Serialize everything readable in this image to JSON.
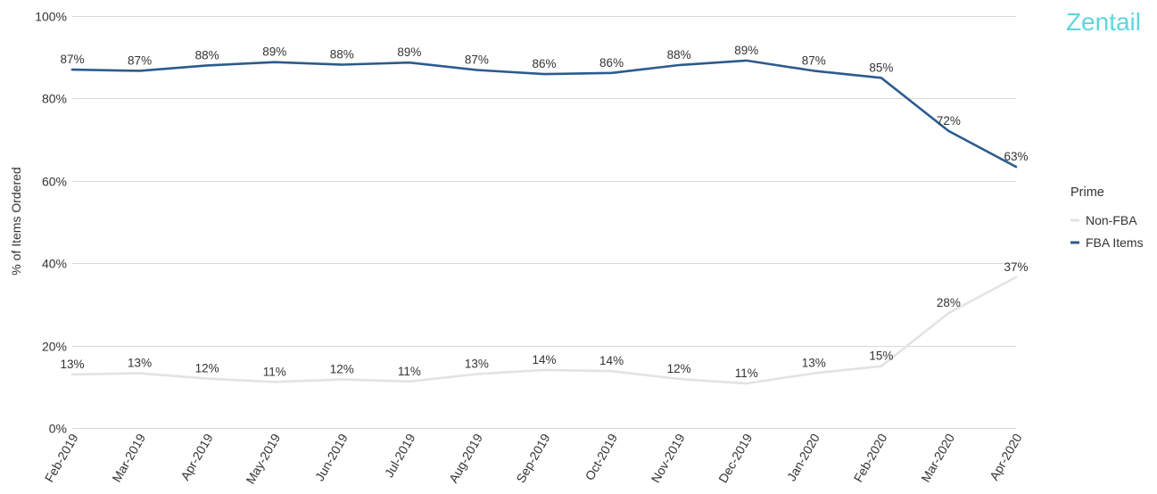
{
  "brand": {
    "name": "Zentail",
    "color": "#5fd6dd"
  },
  "chart_data": {
    "type": "line",
    "title": "",
    "xlabel": "",
    "ylabel": "% of Items Ordered",
    "ylim": [
      0,
      100
    ],
    "y_ticks": [
      0,
      20,
      40,
      60,
      80,
      100
    ],
    "y_tick_labels": [
      "0%",
      "20%",
      "40%",
      "60%",
      "80%",
      "100%"
    ],
    "grid": true,
    "legend_placement": "right",
    "legend_title": "Prime",
    "categories": [
      "Feb-2019",
      "Mar-2019",
      "Apr-2019",
      "May-2019",
      "Jun-2019",
      "Jul-2019",
      "Aug-2019",
      "Sep-2019",
      "Oct-2019",
      "Nov-2019",
      "Dec-2019",
      "Jan-2020",
      "Feb-2020",
      "Mar-2020",
      "Apr-2020"
    ],
    "series": [
      {
        "name": "Non-FBA",
        "color": "#e3e3e3",
        "values": [
          13,
          13.3,
          12,
          11.2,
          11.8,
          11.3,
          13.1,
          14.1,
          13.8,
          11.9,
          10.8,
          13.3,
          15,
          27.9,
          36.6
        ],
        "labels": [
          "13%",
          "13%",
          "12%",
          "11%",
          "12%",
          "11%",
          "13%",
          "14%",
          "14%",
          "12%",
          "11%",
          "13%",
          "15%",
          "28%",
          "37%"
        ]
      },
      {
        "name": "FBA Items",
        "color": "#2c5b8d",
        "values": [
          87,
          86.7,
          88,
          88.8,
          88.2,
          88.7,
          86.9,
          85.9,
          86.2,
          88.1,
          89.2,
          86.7,
          85,
          72.1,
          63.4
        ],
        "labels": [
          "87%",
          "87%",
          "88%",
          "89%",
          "88%",
          "89%",
          "87%",
          "86%",
          "86%",
          "88%",
          "89%",
          "87%",
          "85%",
          "72%",
          "63%"
        ]
      }
    ]
  }
}
